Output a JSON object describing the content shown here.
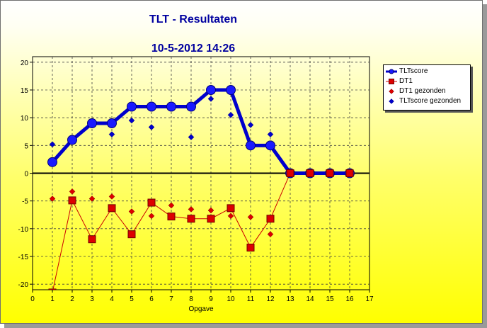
{
  "title": "TLT - Resultaten",
  "subtitle": "10-5-2012    14:26",
  "colors": {
    "background_top": "#ffffff",
    "background_bottom": "#ffff00",
    "title": "#0000a0",
    "tltscore": "#0000cc",
    "tltscore_marker": "#1919ff",
    "dt1_line": "#cc0000",
    "dt1_marker": "#dd0000",
    "dt1_gezonden": "#dd0000",
    "tltscore_gezonden": "#0000cc",
    "grid": "#404040",
    "zero_line": "#000000"
  },
  "chart_data": {
    "type": "line",
    "title": "TLT - Resultaten",
    "subtitle": "10-5-2012    14:26",
    "xlabel": "Opgave",
    "ylabel": "",
    "xlim": [
      0,
      17
    ],
    "ylim": [
      -21,
      21
    ],
    "xticks": [
      0,
      1,
      2,
      3,
      4,
      5,
      6,
      7,
      8,
      9,
      10,
      11,
      12,
      13,
      14,
      15,
      16,
      17
    ],
    "yticks": [
      -20,
      -15,
      -10,
      -5,
      0,
      5,
      10,
      15,
      20
    ],
    "grid": true,
    "legend_position": "top-right",
    "series": [
      {
        "name": "TLTscore",
        "style": "thick line with large circles",
        "x": [
          1,
          2,
          3,
          4,
          5,
          6,
          7,
          8,
          9,
          10,
          11,
          12,
          13,
          14,
          15,
          16
        ],
        "y": [
          2,
          6,
          9,
          9,
          12,
          12,
          12,
          12,
          15,
          15,
          5,
          5,
          0,
          0,
          0,
          0
        ]
      },
      {
        "name": "DT1",
        "style": "thin line with squares",
        "x": [
          1,
          2,
          3,
          4,
          5,
          6,
          7,
          8,
          9,
          10,
          11,
          12,
          13,
          14,
          15,
          16
        ],
        "y": [
          -21.5,
          -4.9,
          -11.9,
          -6.3,
          -11,
          -5.3,
          -7.8,
          -8.2,
          -8.2,
          -6.3,
          -13.4,
          -8.2,
          0,
          0,
          0,
          0
        ]
      },
      {
        "name": "DT1 gezonden",
        "style": "small diamonds",
        "x": [
          1,
          2,
          3,
          4,
          5,
          6,
          7,
          8,
          9,
          10,
          11,
          12
        ],
        "y": [
          -4.6,
          -3.3,
          -4.6,
          -4.2,
          -6.9,
          -7.7,
          -5.8,
          -6.5,
          -6.7,
          -7.7,
          -7.9,
          -11
        ]
      },
      {
        "name": "TLTscore gezonden",
        "style": "small diamonds",
        "x": [
          1,
          4,
          5,
          6,
          8,
          9,
          10,
          11,
          12
        ],
        "y": [
          5.2,
          7,
          9.5,
          8.3,
          6.5,
          13.4,
          10.5,
          8.7,
          7
        ]
      }
    ]
  }
}
